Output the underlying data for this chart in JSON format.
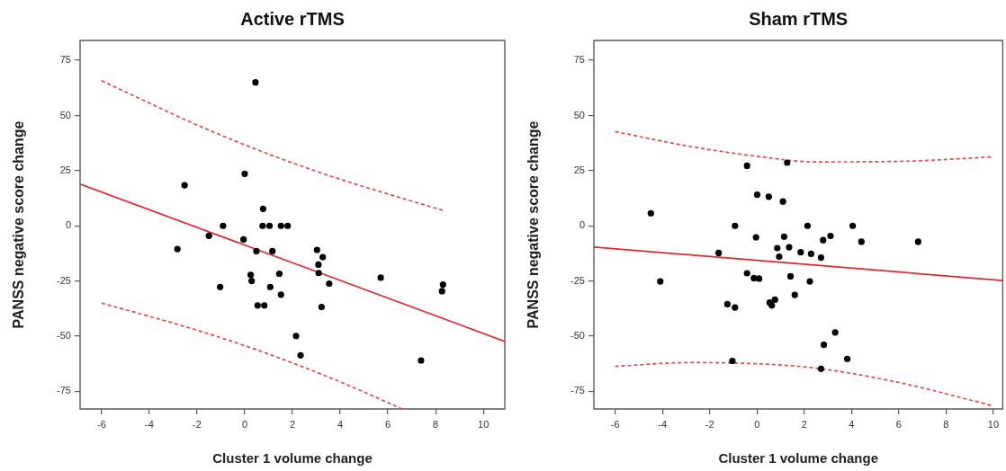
{
  "chart_data": [
    {
      "type": "scatter",
      "title": "Active rTMS",
      "xlabel": "Cluster 1 volume change",
      "ylabel": "PANSS negative score change",
      "xlim": [
        -6.9,
        10.9
      ],
      "ylim": [
        -83,
        84
      ],
      "xticks": [
        -6,
        -4,
        -2,
        0,
        2,
        4,
        6,
        8,
        10
      ],
      "yticks": [
        -75,
        -50,
        -25,
        0,
        25,
        50,
        75
      ],
      "series": [
        {
          "type": "scatter",
          "marker": "circle",
          "color": "#000000",
          "x": [
            0.45,
            -2.52,
            0,
            -2.82,
            -1.5,
            -0.91,
            -1.03,
            -0.05,
            0.77,
            0.75,
            1.04,
            1.52,
            1.8,
            0.49,
            1.16,
            0.25,
            0.29,
            1.07,
            1.45,
            1.52,
            0.54,
            0.82,
            2.15,
            2.34,
            3.03,
            3.27,
            3.09,
            3.1,
            3.54,
            3.22,
            5.7,
            8.31,
            8.27,
            7.39
          ],
          "values": [
            65,
            18.4,
            23.6,
            -10.5,
            -4.5,
            0,
            -27.7,
            -6.2,
            7.7,
            0,
            0,
            0,
            0,
            -11.5,
            -11.5,
            -22.2,
            -25,
            -27.7,
            -21.7,
            -31.2,
            -36.1,
            -36.1,
            -49.9,
            -58.7,
            -10.9,
            -14.2,
            -17.6,
            -21.4,
            -26.2,
            -36.8,
            -23.5,
            -26.6,
            -29.6,
            -61
          ]
        },
        {
          "type": "line",
          "marker": "none",
          "line_style": "solid",
          "color": "#e0282e",
          "x": [
            -6.9,
            10.9
          ],
          "values": [
            18.9,
            -52.4
          ]
        },
        {
          "type": "line",
          "marker": "none",
          "line_style": "dashed",
          "color": "#e04a4a",
          "x": [
            -6,
            -2,
            1,
            4,
            7,
            8.3
          ],
          "values": [
            65.8,
            45.7,
            32.5,
            21.1,
            11.2,
            7
          ]
        },
        {
          "type": "line",
          "marker": "none",
          "line_style": "dashed",
          "color": "#e04a4a",
          "x": [
            -6,
            -2,
            1,
            4,
            6.6
          ],
          "values": [
            -35,
            -47.3,
            -58.1,
            -70.7,
            -83
          ]
        }
      ]
    },
    {
      "type": "scatter",
      "title": "Sham rTMS",
      "xlabel": "Cluster 1 volume change",
      "ylabel": "PANSS negative score change",
      "xlim": [
        -6.9,
        10.4
      ],
      "ylim": [
        -83,
        84
      ],
      "xticks": [
        -6,
        -4,
        -2,
        0,
        2,
        4,
        6,
        8,
        10
      ],
      "yticks": [
        -75,
        -50,
        -25,
        0,
        25,
        50,
        75
      ],
      "series": [
        {
          "type": "scatter",
          "marker": "circle",
          "color": "#000000",
          "x": [
            -4.49,
            -4.09,
            -1.62,
            -0.93,
            -0.42,
            0.01,
            -0.04,
            -0.42,
            -0.13,
            0.09,
            -1.25,
            -0.93,
            -1.04,
            1.28,
            0.5,
            1.1,
            2.14,
            4.05,
            1.15,
            3.11,
            2.8,
            4.42,
            6.82,
            1.36,
            0.86,
            0.94,
            1.85,
            2.29,
            2.71,
            1.42,
            2.24,
            1.6,
            0.54,
            0.63,
            0.76,
            3.31,
            2.83,
            3.82,
            2.71
          ],
          "values": [
            5.7,
            -25.2,
            -12.3,
            0,
            27.2,
            14.1,
            -5.2,
            -21.5,
            -23.7,
            -23.9,
            -35.5,
            -37,
            -61.2,
            28.6,
            13.2,
            11,
            0,
            0,
            -4.9,
            -4.6,
            -6.5,
            -7.2,
            -7.2,
            -9.7,
            -10.1,
            -14,
            -12,
            -12.7,
            -14.4,
            -22.9,
            -25.2,
            -31.3,
            -34.8,
            -36.1,
            -33.5,
            -48.3,
            -53.9,
            -60.3,
            -64.8
          ]
        },
        {
          "type": "line",
          "marker": "none",
          "line_style": "solid",
          "color": "#e0282e",
          "x": [
            -6.9,
            10.4
          ],
          "values": [
            -9.6,
            -24.8
          ]
        },
        {
          "type": "line",
          "marker": "none",
          "line_style": "dashed",
          "color": "#e04a4a",
          "x": [
            -6,
            -3,
            0,
            2.5,
            6,
            9.9
          ],
          "values": [
            42.7,
            36.3,
            31.5,
            29,
            29.2,
            31.2
          ]
        },
        {
          "type": "line",
          "marker": "none",
          "line_style": "dashed",
          "color": "#e04a4a",
          "x": [
            -6,
            -3,
            0,
            2.5,
            6,
            9.9
          ],
          "values": [
            -63.7,
            -62,
            -62.5,
            -64.5,
            -71,
            -81.3
          ]
        }
      ]
    }
  ]
}
